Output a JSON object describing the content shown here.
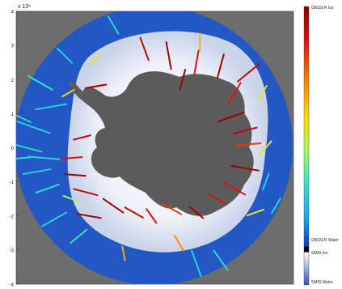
{
  "figure": {
    "exponent_label": "x 10⁶",
    "axis_ticks": [
      "4",
      "3",
      "2",
      "1",
      "0",
      "-1",
      "-2",
      "-3",
      "-4"
    ],
    "colorbar": {
      "top_label": "GNSS-R Ice",
      "label_water": "GNSS-R Water",
      "label_ice": "SMIS Ice",
      "label_water_bottom": "SMIS Water"
    }
  },
  "map_colors": {
    "background": "#6d6d6d",
    "ocean": "#2257c4",
    "sea_ice": "#f4f6fb",
    "continent": "#5b5b5b"
  },
  "tracks": [
    {
      "x": 1.9,
      "y": 2.4,
      "angle": 75,
      "len": 0.7,
      "v": 1.0
    },
    {
      "x": 2.7,
      "y": 2.2,
      "angle": 40,
      "len": 0.8,
      "v": 0.95
    },
    {
      "x": 2.3,
      "y": 1.6,
      "angle": 60,
      "len": 0.7,
      "v": 0.9
    },
    {
      "x": 2.2,
      "y": 0.9,
      "angle": 20,
      "len": 0.8,
      "v": 1.0
    },
    {
      "x": 2.6,
      "y": 0.5,
      "angle": 15,
      "len": 0.7,
      "v": 0.95
    },
    {
      "x": 2.7,
      "y": 0.1,
      "angle": 5,
      "len": 0.7,
      "v": 0.85
    },
    {
      "x": 2.6,
      "y": -0.6,
      "angle": -10,
      "len": 0.8,
      "v": 1.0
    },
    {
      "x": 2.3,
      "y": -1.2,
      "angle": -30,
      "len": 0.7,
      "v": 0.9
    },
    {
      "x": 0.4,
      "y": 2.7,
      "angle": 100,
      "len": 0.8,
      "v": 1.0
    },
    {
      "x": -0.3,
      "y": 2.9,
      "angle": 110,
      "len": 0.7,
      "v": 0.95
    },
    {
      "x": -1.7,
      "y": 1.8,
      "angle": 10,
      "len": 0.6,
      "v": 1.0
    },
    {
      "x": 0.8,
      "y": 2.0,
      "angle": 75,
      "len": 0.6,
      "v": 1.0
    },
    {
      "x": 1.2,
      "y": 2.5,
      "angle": 80,
      "len": 0.7,
      "v": 0.9
    },
    {
      "x": -2.1,
      "y": 0.3,
      "angle": 15,
      "len": 0.5,
      "v": 0.95
    },
    {
      "x": -2.4,
      "y": -0.3,
      "angle": 5,
      "len": 0.6,
      "v": 0.9
    },
    {
      "x": -2.3,
      "y": -0.8,
      "angle": -5,
      "len": 0.6,
      "v": 1.0
    },
    {
      "x": -2.0,
      "y": -1.3,
      "angle": -15,
      "len": 0.7,
      "v": 0.95
    },
    {
      "x": -1.9,
      "y": -2.0,
      "angle": -10,
      "len": 0.7,
      "v": 1.0
    },
    {
      "x": -1.2,
      "y": -1.7,
      "angle": -35,
      "len": 0.7,
      "v": 1.0
    },
    {
      "x": -0.6,
      "y": -1.9,
      "angle": -30,
      "len": 0.6,
      "v": 0.95
    },
    {
      "x": -0.1,
      "y": -2.0,
      "angle": -55,
      "len": 0.5,
      "v": 0.9
    },
    {
      "x": 0.5,
      "y": -1.8,
      "angle": -30,
      "len": 0.6,
      "v": 0.85
    },
    {
      "x": 1.2,
      "y": -1.9,
      "angle": -40,
      "len": 0.5,
      "v": 1.0
    },
    {
      "x": 1.8,
      "y": -1.5,
      "angle": -30,
      "len": 0.5,
      "v": 0.9
    },
    {
      "x": -1.7,
      "y": 2.6,
      "angle": 40,
      "len": 0.4,
      "v": 0.6
    },
    {
      "x": 1.3,
      "y": 3.1,
      "angle": 90,
      "len": 0.5,
      "v": 0.7
    },
    {
      "x": 3.1,
      "y": 1.6,
      "angle": 60,
      "len": 0.5,
      "v": 0.55
    },
    {
      "x": 3.2,
      "y": 0.0,
      "angle": 50,
      "len": 0.5,
      "v": 0.6
    },
    {
      "x": 2.9,
      "y": -1.9,
      "angle": 20,
      "len": 0.5,
      "v": 0.6
    },
    {
      "x": -2.5,
      "y": 1.6,
      "angle": 30,
      "len": 0.4,
      "v": 0.65
    },
    {
      "x": -0.9,
      "y": -3.1,
      "angle": -80,
      "len": 0.4,
      "v": 0.7
    },
    {
      "x": -2.4,
      "y": -1.5,
      "angle": -20,
      "len": 0.5,
      "v": 0.5
    },
    {
      "x": 0.7,
      "y": -2.8,
      "angle": -60,
      "len": 0.5,
      "v": 0.75
    },
    {
      "x": -3.3,
      "y": 1.9,
      "angle": -30,
      "len": 0.8,
      "v": 0.35
    },
    {
      "x": -3.5,
      "y": 0.6,
      "angle": -20,
      "len": 1.0,
      "v": 0.3
    },
    {
      "x": -3.7,
      "y": 0.0,
      "angle": -15,
      "len": 0.9,
      "v": 0.32
    },
    {
      "x": -3.4,
      "y": -0.7,
      "angle": 10,
      "len": 0.8,
      "v": 0.3
    },
    {
      "x": -3.1,
      "y": -1.2,
      "angle": 20,
      "len": 0.7,
      "v": 0.34
    },
    {
      "x": -2.9,
      "y": -2.1,
      "angle": 30,
      "len": 0.8,
      "v": 0.3
    },
    {
      "x": -2.2,
      "y": -2.6,
      "angle": 40,
      "len": 0.6,
      "v": 0.36
    },
    {
      "x": -3.9,
      "y": 0.9,
      "angle": -25,
      "len": 0.7,
      "v": 0.3
    },
    {
      "x": -3.8,
      "y": -0.3,
      "angle": 5,
      "len": 0.6,
      "v": 0.33
    },
    {
      "x": -2.6,
      "y": 2.7,
      "angle": -45,
      "len": 0.6,
      "v": 0.3
    },
    {
      "x": -1.2,
      "y": 3.6,
      "angle": -60,
      "len": 0.6,
      "v": 0.32
    },
    {
      "x": 1.2,
      "y": -3.4,
      "angle": -70,
      "len": 0.8,
      "v": 0.3
    },
    {
      "x": 1.9,
      "y": -3.3,
      "angle": -55,
      "len": 0.7,
      "v": 0.34
    },
    {
      "x": 3.2,
      "y": -1.0,
      "angle": 70,
      "len": 0.5,
      "v": 0.3
    },
    {
      "x": 3.5,
      "y": -1.7,
      "angle": 60,
      "len": 0.5,
      "v": 0.32
    },
    {
      "x": -3.0,
      "y": 1.2,
      "angle": 10,
      "len": 0.9,
      "v": 0.3
    },
    {
      "x": -3.2,
      "y": -0.3,
      "angle": -5,
      "len": 0.9,
      "v": 0.31
    }
  ]
}
